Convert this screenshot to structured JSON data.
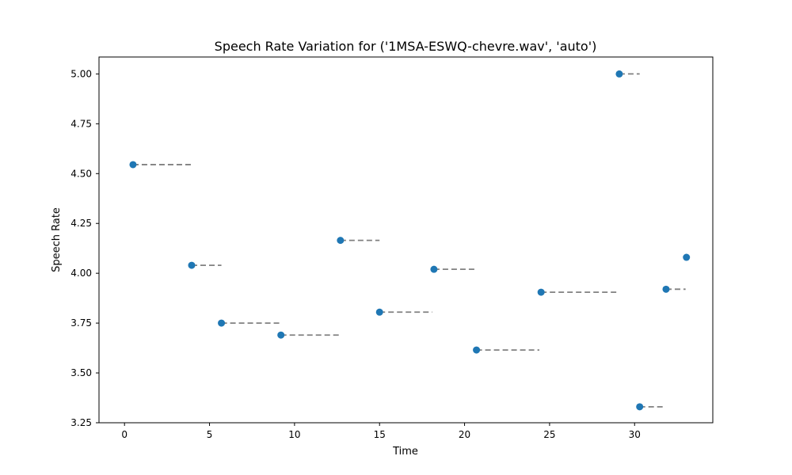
{
  "chart_data": {
    "type": "scatter",
    "title": "Speech Rate Variation for ('1MSA-ESWQ-chevre.wav', 'auto')",
    "xlabel": "Time",
    "ylabel": "Speech Rate",
    "xlim": [
      -1.5,
      34.6
    ],
    "ylim": [
      3.25,
      5.085
    ],
    "x_ticks": [
      0,
      5,
      10,
      15,
      20,
      25,
      30
    ],
    "y_ticks": [
      3.25,
      3.5,
      3.75,
      4.0,
      4.25,
      4.5,
      4.75,
      5.0
    ],
    "y_tick_labels": [
      "3.25",
      "3.50",
      "3.75",
      "4.00",
      "4.25",
      "4.50",
      "4.75",
      "5.00"
    ],
    "grid": false,
    "point_color": "#1f77b4",
    "segment_color": "#808080",
    "points": [
      {
        "x": 0.5,
        "y": 4.545,
        "end": 3.9
      },
      {
        "x": 3.95,
        "y": 4.04,
        "end": 5.7
      },
      {
        "x": 5.7,
        "y": 3.75,
        "end": 9.1
      },
      {
        "x": 9.2,
        "y": 3.69,
        "end": 12.6
      },
      {
        "x": 12.7,
        "y": 4.165,
        "end": 15.0
      },
      {
        "x": 15.0,
        "y": 3.805,
        "end": 18.1
      },
      {
        "x": 18.2,
        "y": 4.02,
        "end": 20.6
      },
      {
        "x": 20.7,
        "y": 3.615,
        "end": 24.4
      },
      {
        "x": 24.5,
        "y": 3.905,
        "end": 29.0
      },
      {
        "x": 29.1,
        "y": 5.0,
        "end": 30.3
      },
      {
        "x": 30.3,
        "y": 3.33,
        "end": 31.7
      },
      {
        "x": 31.85,
        "y": 3.92,
        "end": 33.0
      },
      {
        "x": 33.05,
        "y": 4.08,
        "end": null
      }
    ]
  }
}
